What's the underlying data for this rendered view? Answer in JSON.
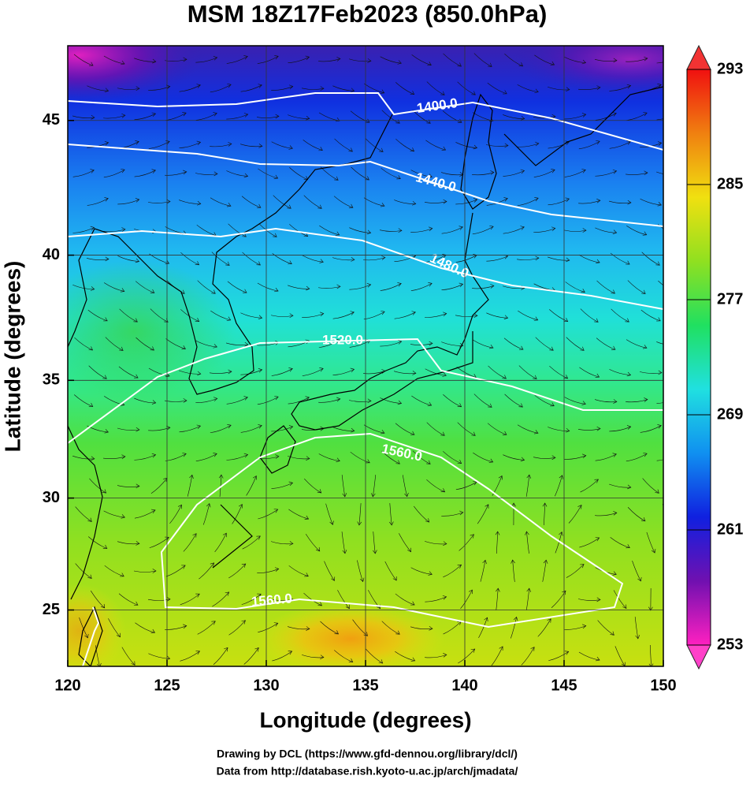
{
  "chart_data": {
    "type": "map",
    "title": "MSM 18Z17Feb2023 (850.0hPa)",
    "x_label": "Longitude (degrees)",
    "y_label": "Latitude  (degrees)",
    "projection": "mercator",
    "xlim": [
      120,
      150
    ],
    "xticks": [
      120,
      125,
      130,
      135,
      140,
      145,
      150
    ],
    "ylim": [
      22.4,
      47.6
    ],
    "yticks": [
      25,
      30,
      35,
      40,
      45
    ],
    "grid": true,
    "colorbar": {
      "lim": [
        253,
        293
      ],
      "ticks": [
        253,
        261,
        269,
        277,
        285,
        293
      ],
      "colors": [
        "#ff20c0",
        "#7010b0",
        "#1020e0",
        "#1090f0",
        "#20e0e0",
        "#20e060",
        "#90e020",
        "#f0e010",
        "#f08010",
        "#f01010"
      ]
    },
    "contours": [
      {
        "value": 1400,
        "label": "1400.0"
      },
      {
        "value": 1440,
        "label": "1440.0"
      },
      {
        "value": 1480,
        "label": "1480.0"
      },
      {
        "value": 1520,
        "label": "1520.0"
      },
      {
        "value": 1560,
        "label": "1560.0"
      },
      {
        "value": 1560,
        "label": "1560.0"
      }
    ],
    "credits": [
      "Drawing by DCL (https://www.gfd-dennou.org/library/dcl/)",
      "Data from http://database.rish.kyoto-u.ac.jp/arch/jmadata/"
    ]
  }
}
